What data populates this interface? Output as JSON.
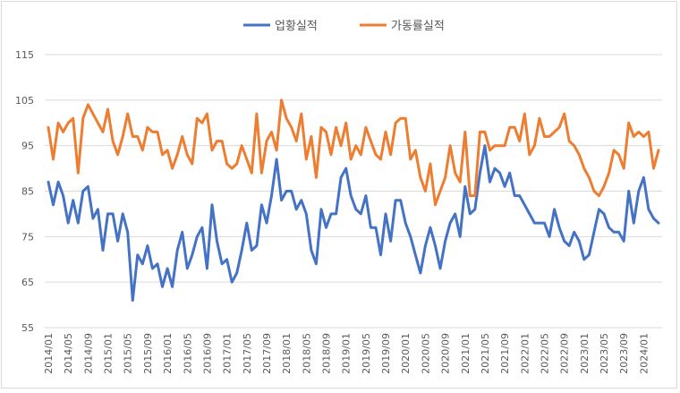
{
  "chart_data": {
    "type": "line",
    "title": "",
    "xlabel": "",
    "ylabel": "",
    "ylim": [
      55,
      115
    ],
    "yticks": [
      55,
      65,
      75,
      85,
      95,
      105,
      115
    ],
    "grid": true,
    "legend_position": "top",
    "x_tick_labels": [
      "2014/01",
      "2014/05",
      "2014/09",
      "2015/01",
      "2015/05",
      "2015/09",
      "2016/01",
      "2016/05",
      "2016/09",
      "2017/01",
      "2017/05",
      "2017/09",
      "2018/01",
      "2018/05",
      "2018/09",
      "2019/01",
      "2019/05",
      "2019/09",
      "2020/01",
      "2020/05",
      "2020/09",
      "2021/01",
      "2021/05",
      "2021/09",
      "2022/01",
      "2022/05",
      "2022/09",
      "2023/01",
      "2023/05",
      "2023/09",
      "2024/01"
    ],
    "start_month": "2014/01",
    "series": [
      {
        "name": "업황실적",
        "color": "#4472c4",
        "values": [
          87,
          82,
          87,
          84,
          78,
          83,
          78,
          85,
          86,
          79,
          81,
          72,
          80,
          80,
          74,
          80,
          76,
          61,
          71,
          69,
          73,
          68,
          69,
          64,
          68,
          64,
          72,
          76,
          68,
          71,
          75,
          77,
          68,
          82,
          74,
          69,
          70,
          65,
          67,
          72,
          78,
          72,
          73,
          82,
          78,
          84,
          92,
          83,
          85,
          85,
          81,
          83,
          80,
          72,
          69,
          81,
          77,
          80,
          80,
          88,
          90,
          84,
          81,
          80,
          84,
          77,
          77,
          71,
          80,
          74,
          83,
          83,
          78,
          75,
          71,
          67,
          73,
          77,
          73,
          68,
          74,
          78,
          80,
          75,
          86,
          80,
          81,
          89,
          95,
          87,
          90,
          89,
          86,
          89,
          84,
          84,
          82,
          80,
          78,
          78,
          78,
          75,
          81,
          77,
          74,
          73,
          76,
          74,
          70,
          71,
          76,
          81,
          80,
          77,
          76,
          76,
          74,
          85,
          78,
          85,
          88,
          81,
          79,
          78
        ]
      },
      {
        "name": "가동률실적",
        "color": "#ed7d31",
        "values": [
          99,
          92,
          100,
          98,
          100,
          101,
          89,
          101,
          104,
          102,
          100,
          98,
          103,
          96,
          93,
          97,
          102,
          97,
          97,
          94,
          99,
          98,
          98,
          93,
          94,
          90,
          93,
          97,
          93,
          91,
          101,
          100,
          102,
          94,
          96,
          96,
          91,
          90,
          91,
          95,
          92,
          89,
          102,
          89,
          96,
          98,
          94,
          105,
          101,
          99,
          96,
          102,
          92,
          97,
          88,
          99,
          98,
          93,
          99,
          95,
          100,
          92,
          95,
          93,
          99,
          96,
          93,
          92,
          98,
          93,
          100,
          101,
          101,
          92,
          94,
          88,
          85,
          91,
          82,
          85,
          88,
          95,
          89,
          87,
          98,
          84,
          84,
          98,
          98,
          94,
          95,
          95,
          95,
          99,
          99,
          96,
          102,
          93,
          95,
          101,
          97,
          97,
          98,
          99,
          102,
          96,
          95,
          93,
          90,
          88,
          85,
          84,
          86,
          89,
          94,
          93,
          90,
          100,
          97,
          98,
          97,
          98,
          90,
          94
        ]
      }
    ]
  }
}
